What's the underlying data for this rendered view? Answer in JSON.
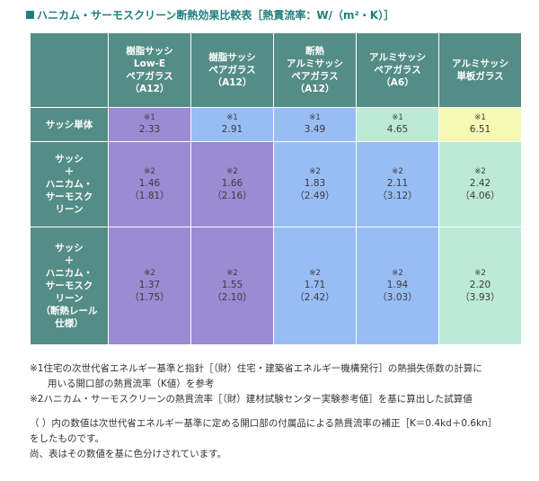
{
  "title": {
    "text": "ハニカム・サーモスクリーン断熱効果比較表［熱貫流率：W/（m²・K）］"
  },
  "columns": [
    {
      "lines": [
        "樹脂サッシ",
        "Low-E",
        "ペアガラス",
        "（A12）"
      ]
    },
    {
      "lines": [
        "樹脂サッシ",
        "ペアガラス",
        "（A12）"
      ]
    },
    {
      "lines": [
        "断熱",
        "アルミサッシ",
        "ペアガラス",
        "（A12）"
      ]
    },
    {
      "lines": [
        "アルミサッシ",
        "ペアガラス",
        "（A6）"
      ]
    },
    {
      "lines": [
        "アルミサッシ",
        "単板ガラス"
      ]
    }
  ],
  "rows": [
    {
      "header_lines": [
        "サッシ単体"
      ],
      "note": "※1",
      "cells": [
        {
          "value": "2.33",
          "sub": ""
        },
        {
          "value": "2.91",
          "sub": ""
        },
        {
          "value": "3.49",
          "sub": ""
        },
        {
          "value": "4.65",
          "sub": ""
        },
        {
          "value": "6.51",
          "sub": ""
        }
      ]
    },
    {
      "header_lines": [
        "サッシ",
        "＋",
        "ハニカム・",
        "サーモスク",
        "リーン"
      ],
      "note": "※2",
      "cells": [
        {
          "value": "1.46",
          "sub": "（1.81）"
        },
        {
          "value": "1.66",
          "sub": "（2.16）"
        },
        {
          "value": "1.83",
          "sub": "（2.49）"
        },
        {
          "value": "2.11",
          "sub": "（3.12）"
        },
        {
          "value": "2.42",
          "sub": "（4.06）"
        }
      ]
    },
    {
      "header_lines": [
        "サッシ",
        "＋",
        "ハニカム・",
        "サーモスク",
        "リーン",
        "（断熱レール",
        "仕様）"
      ],
      "note": "※2",
      "cells": [
        {
          "value": "1.37",
          "sub": "（1.75）"
        },
        {
          "value": "1.55",
          "sub": "（2.10）"
        },
        {
          "value": "1.71",
          "sub": "（2.42）"
        },
        {
          "value": "1.94",
          "sub": "（3.03）"
        },
        {
          "value": "2.20",
          "sub": "（3.93）"
        }
      ]
    }
  ],
  "footnotes": {
    "n1_line1": "※1住宅の次世代省エネルギー基準と指針［（財）住宅・建築省エネルギー機構発行］の熱損失係数の計算に",
    "n1_line2": "用いる開口部の熱貫流率（K値）を参考",
    "n2": "※2ハニカム・サーモスクリーンの熱貫流率［（財）建材試験センター実験参考値］を基に算出した試算値",
    "p1_line1": "（ ）内の数値は次世代省エネルギー基準に定める開口部の付属品による熱貫流率の補正［K＝0.4kd＋0.6kn］",
    "p1_line2": "をしたものです。",
    "p2": "尚、表はその数値を基に色分けされています。"
  },
  "colors": {
    "header": "#548c86",
    "purple": "#9b8bd3",
    "blue": "#98bdf5",
    "green": "#bcead7",
    "yellow": "#f4f9b4",
    "title": "#1f7f7c"
  }
}
